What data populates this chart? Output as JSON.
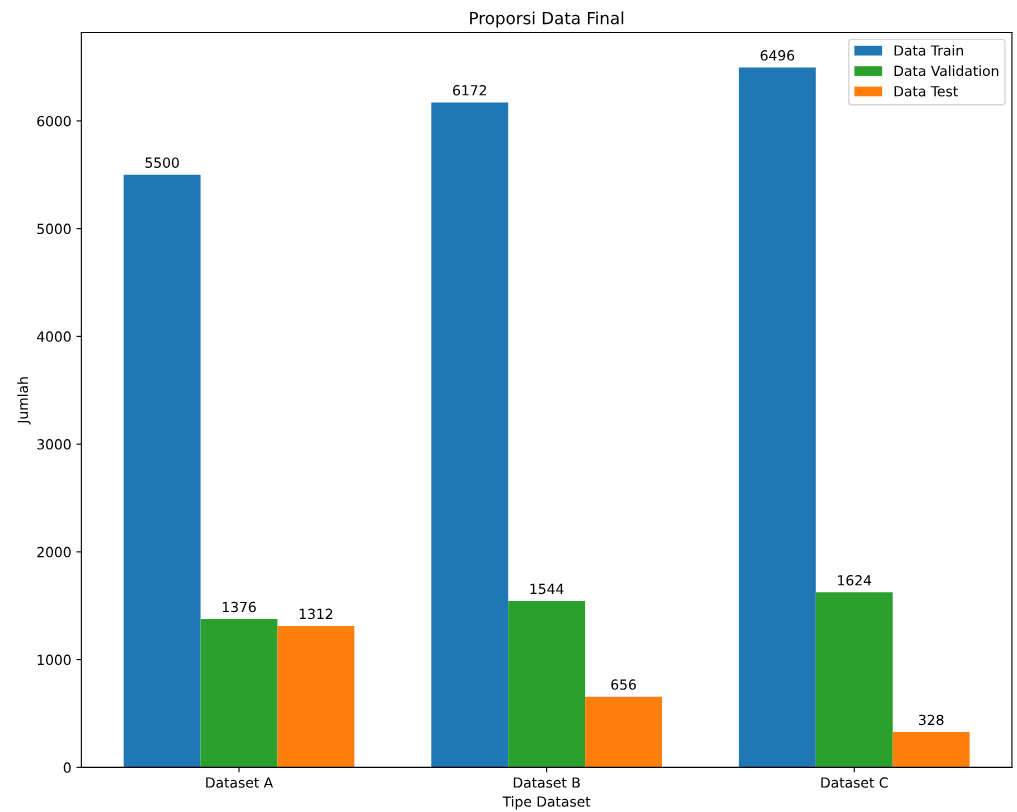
{
  "chart_data": {
    "type": "bar",
    "title": "Proporsi Data Final",
    "xlabel": "Tipe Dataset",
    "ylabel": "Jumlah",
    "categories": [
      "Dataset A",
      "Dataset B",
      "Dataset C"
    ],
    "series": [
      {
        "name": "Data Train",
        "color": "#1f77b4",
        "values": [
          5500,
          6172,
          6496
        ]
      },
      {
        "name": "Data Validation",
        "color": "#2ca02c",
        "values": [
          1376,
          1544,
          1624
        ]
      },
      {
        "name": "Data Test",
        "color": "#ff7f0e",
        "values": [
          1312,
          656,
          328
        ]
      }
    ],
    "ylim": [
      0,
      6820.8
    ],
    "yticks": [
      0,
      1000,
      2000,
      3000,
      4000,
      5000,
      6000
    ],
    "data_labels": true,
    "legend": "top right",
    "grid": false
  }
}
